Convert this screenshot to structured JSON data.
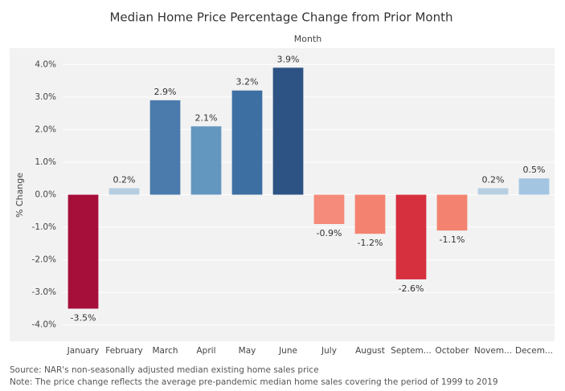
{
  "chart_data": {
    "type": "bar",
    "title": "Median Home Price Percentage Change from Prior Month",
    "x_label": "Month",
    "y_label": "% Change",
    "categories": [
      "January",
      "February",
      "March",
      "April",
      "May",
      "June",
      "July",
      "August",
      "Septem...",
      "October",
      "Novem...",
      "Decem..."
    ],
    "values": [
      -3.5,
      0.2,
      2.9,
      2.1,
      3.2,
      3.9,
      -0.9,
      -1.2,
      -2.6,
      -1.1,
      0.2,
      0.5
    ],
    "value_labels": [
      "-3.5%",
      "0.2%",
      "2.9%",
      "2.1%",
      "3.2%",
      "3.9%",
      "-0.9%",
      "-1.2%",
      "-2.6%",
      "-1.1%",
      "0.2%",
      "0.5%"
    ],
    "colors": [
      "#a50f3a",
      "#b6cde0",
      "#4a7bac",
      "#6497c0",
      "#3e6fa3",
      "#2c5384",
      "#f58b7a",
      "#f38370",
      "#d6303f",
      "#f38370",
      "#b8cfe2",
      "#a3c5e2"
    ],
    "ylim": [
      -4.5,
      4.5
    ],
    "yticks": [
      {
        "value": -4,
        "label": "-4.0%"
      },
      {
        "value": -3,
        "label": "-3.0%"
      },
      {
        "value": -2,
        "label": "-2.0%"
      },
      {
        "value": -1,
        "label": "-1.0%"
      },
      {
        "value": 0,
        "label": "0.0%"
      },
      {
        "value": 1,
        "label": "1.0%"
      },
      {
        "value": 2,
        "label": "2.0%"
      },
      {
        "value": 3,
        "label": "3.0%"
      },
      {
        "value": 4,
        "label": "4.0%"
      }
    ],
    "grid": true,
    "notes": [
      "Source: NAR's non-seasonally adjusted median existing home sales price",
      "Note: The price change reflects the average pre-pandemic median home sales covering the period of 1999 to 2019"
    ]
  }
}
